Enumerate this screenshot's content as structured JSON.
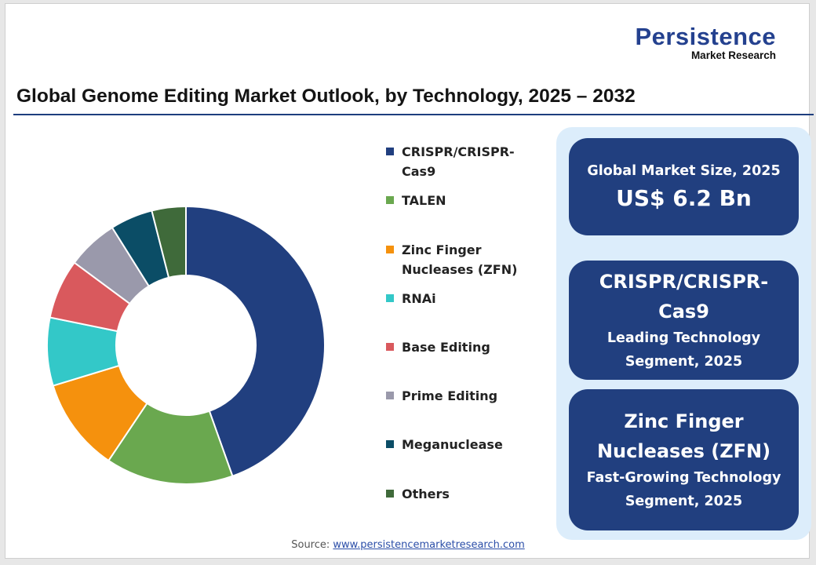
{
  "brand": {
    "name": "Persistence",
    "subtitle": "Market Research"
  },
  "chart_data": {
    "type": "donut",
    "title": "Global Genome Editing Market Outlook, by Technology, 2025 – 2032",
    "categories": [
      "CRISPR/CRISPR-Cas9",
      "TALEN",
      "Zinc Finger Nucleases (ZFN)",
      "RNAi",
      "Base Editing",
      "Prime Editing",
      "Meganuclease",
      "Others"
    ],
    "values": [
      45,
      15,
      11,
      8,
      7,
      6,
      5,
      4
    ],
    "colors": [
      "#213f7f",
      "#6aa84f",
      "#f5910d",
      "#33c8c8",
      "#d9595d",
      "#9a99ab",
      "#0b4d66",
      "#3f6a3a"
    ]
  },
  "legend_lines": [
    [
      "CRISPR/CRISPR-",
      "Cas9"
    ],
    [
      "TALEN"
    ],
    [
      "Zinc Finger",
      "Nucleases (ZFN)"
    ],
    [
      "RNAi"
    ],
    [
      "Base Editing"
    ],
    [
      "Prime Editing"
    ],
    [
      "Meganuclease"
    ],
    [
      "Others"
    ]
  ],
  "highlights": {
    "market_size": {
      "label": "Global Market Size, 2025",
      "value": "US$ 6.2 Bn"
    },
    "leading": {
      "name_line1": "CRISPR/CRISPR-",
      "name_line2": "Cas9",
      "desc_line1": "Leading Technology",
      "desc_line2": "Segment, 2025"
    },
    "fastest": {
      "name_line1": "Zinc Finger",
      "name_line2": "Nucleases (ZFN)",
      "desc_line1": "Fast-Growing Technology",
      "desc_line2": "Segment, 2025"
    }
  },
  "source": {
    "label": "Source:",
    "link": "www.persistencemarketresearch.com"
  }
}
